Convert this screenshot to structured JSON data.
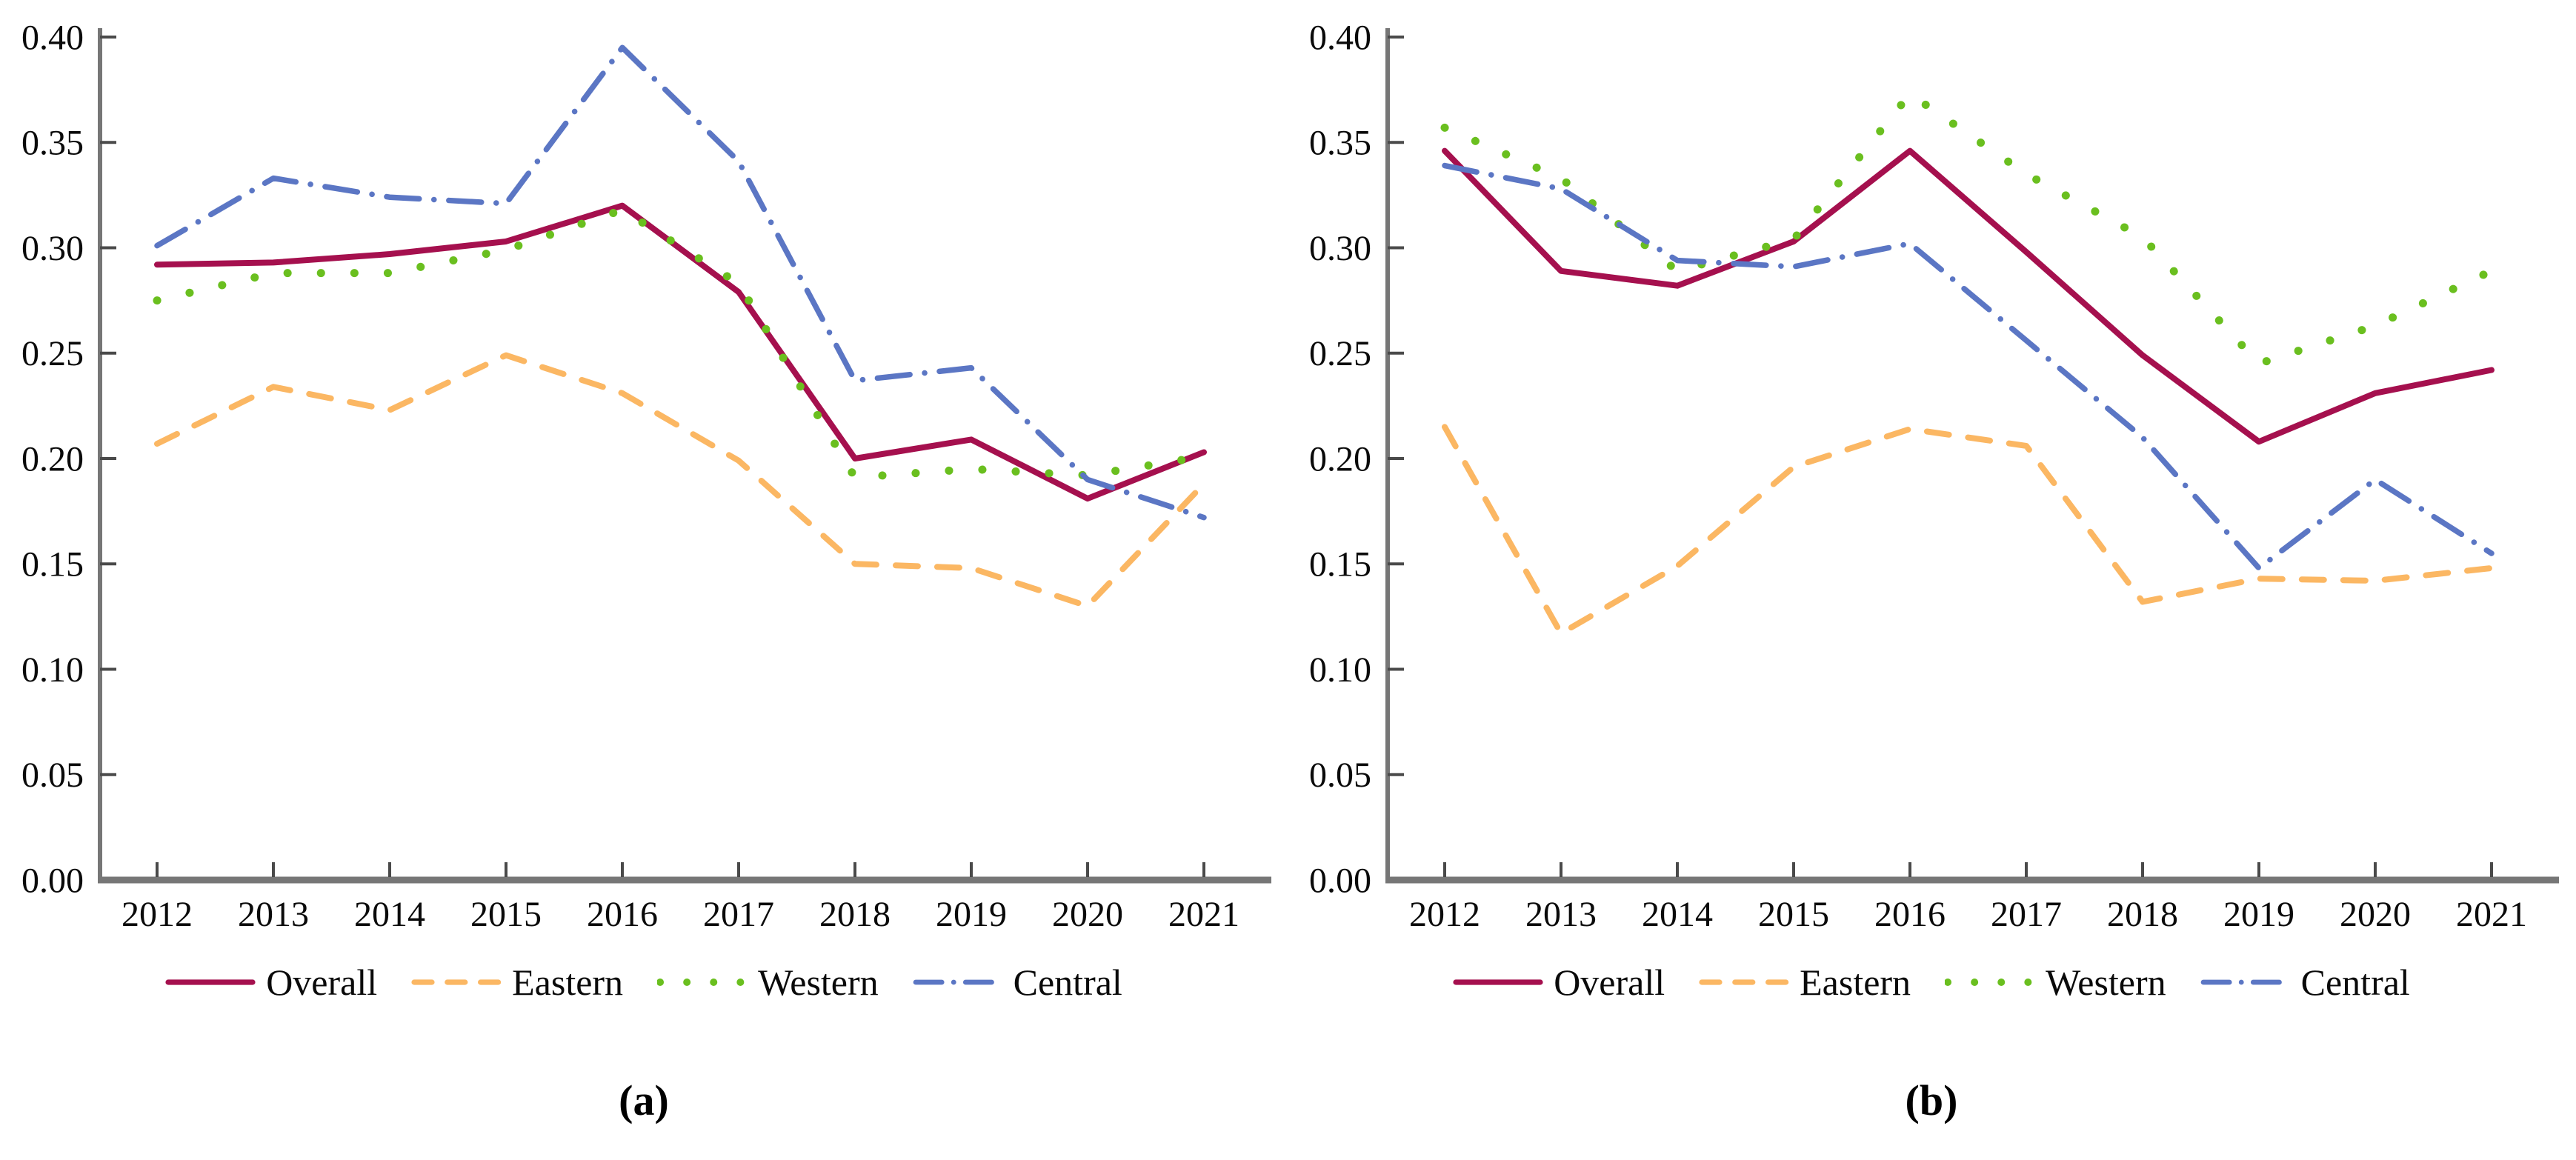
{
  "figure": {
    "background_color": "#ffffff",
    "axis_color": "#767676",
    "tick_color": "#4a4a4a",
    "text_color": "#0a0a0a",
    "series_colors": {
      "overall": "#a5104e",
      "eastern": "#fbb763",
      "western": "#6abf1f",
      "central": "#5b76c4"
    }
  },
  "chart_data": [
    {
      "id": "a",
      "type": "line",
      "caption": "(a)",
      "title": "",
      "xlabel": "",
      "ylabel": "",
      "grid": false,
      "legend_position": "bottom",
      "ylim": [
        0.0,
        0.4
      ],
      "ytick_step": 0.05,
      "yticks": [
        "0.00",
        "0.05",
        "0.10",
        "0.15",
        "0.20",
        "0.25",
        "0.30",
        "0.35",
        "0.40"
      ],
      "x": [
        2012,
        2013,
        2014,
        2015,
        2016,
        2017,
        2018,
        2019,
        2020,
        2021
      ],
      "x_labels": [
        "2012",
        "2013",
        "2014",
        "2015",
        "2016",
        "2017",
        "2018",
        "2019",
        "2020",
        "2021"
      ],
      "series": [
        {
          "name": "Overall",
          "color": "#a5104e",
          "line_style": "solid",
          "values": [
            0.292,
            0.293,
            0.297,
            0.303,
            0.32,
            0.279,
            0.2,
            0.209,
            0.181,
            0.203
          ]
        },
        {
          "name": "Eastern",
          "color": "#fbb763",
          "line_style": "dashed",
          "values": [
            0.207,
            0.234,
            0.223,
            0.249,
            0.231,
            0.199,
            0.15,
            0.148,
            0.13,
            0.188
          ]
        },
        {
          "name": "Western",
          "color": "#6abf1f",
          "line_style": "dotted",
          "values": [
            0.275,
            0.288,
            0.288,
            0.299,
            0.318,
            0.283,
            0.191,
            0.195,
            0.192,
            0.201
          ]
        },
        {
          "name": "Central",
          "color": "#5b76c4",
          "line_style": "dashdot",
          "values": [
            0.301,
            0.333,
            0.324,
            0.321,
            0.395,
            0.341,
            0.237,
            0.243,
            0.19,
            0.172
          ]
        }
      ]
    },
    {
      "id": "b",
      "type": "line",
      "caption": "(b)",
      "title": "",
      "xlabel": "",
      "ylabel": "",
      "grid": false,
      "legend_position": "bottom",
      "ylim": [
        0.0,
        0.4
      ],
      "ytick_step": 0.05,
      "yticks": [
        "0.00",
        "0.05",
        "0.10",
        "0.15",
        "0.20",
        "0.25",
        "0.30",
        "0.35",
        "0.40"
      ],
      "x": [
        2012,
        2013,
        2014,
        2015,
        2016,
        2017,
        2018,
        2019,
        2020,
        2021
      ],
      "x_labels": [
        "2012",
        "2013",
        "2014",
        "2015",
        "2016",
        "2017",
        "2018",
        "2019",
        "2020",
        "2021"
      ],
      "series": [
        {
          "name": "Overall",
          "color": "#a5104e",
          "line_style": "solid",
          "values": [
            0.346,
            0.289,
            0.282,
            0.303,
            0.346,
            0.298,
            0.249,
            0.208,
            0.231,
            0.242
          ]
        },
        {
          "name": "Eastern",
          "color": "#fbb763",
          "line_style": "dashed",
          "values": [
            0.215,
            0.117,
            0.149,
            0.196,
            0.214,
            0.206,
            0.132,
            0.143,
            0.142,
            0.148
          ]
        },
        {
          "name": "Western",
          "color": "#6abf1f",
          "line_style": "dotted",
          "values": [
            0.357,
            0.333,
            0.289,
            0.304,
            0.373,
            0.335,
            0.305,
            0.245,
            0.263,
            0.289
          ]
        },
        {
          "name": "Central",
          "color": "#5b76c4",
          "line_style": "dashdot",
          "values": [
            0.339,
            0.328,
            0.294,
            0.291,
            0.302,
            0.256,
            0.21,
            0.148,
            0.19,
            0.155
          ]
        }
      ]
    }
  ]
}
